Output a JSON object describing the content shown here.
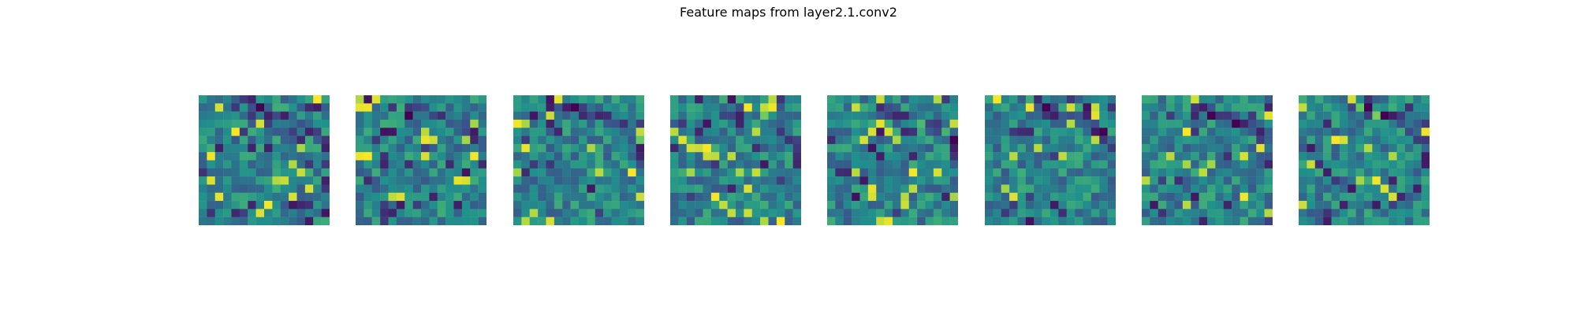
{
  "figure": {
    "title": "Feature maps from layer2.1.conv2"
  },
  "feature_maps": [
    {
      "channel": 0,
      "colormap": "viridis",
      "grid": 16
    },
    {
      "channel": 1,
      "colormap": "viridis",
      "grid": 16
    },
    {
      "channel": 2,
      "colormap": "viridis",
      "grid": 16
    },
    {
      "channel": 3,
      "colormap": "viridis",
      "grid": 16
    },
    {
      "channel": 4,
      "colormap": "viridis",
      "grid": 16
    },
    {
      "channel": 5,
      "colormap": "viridis",
      "grid": 16
    },
    {
      "channel": 6,
      "colormap": "viridis",
      "grid": 16
    },
    {
      "channel": 7,
      "colormap": "viridis",
      "grid": 16
    }
  ],
  "colors": {
    "viridis_low": "#440154",
    "viridis_mid": "#21918c",
    "viridis_high": "#fde725"
  }
}
